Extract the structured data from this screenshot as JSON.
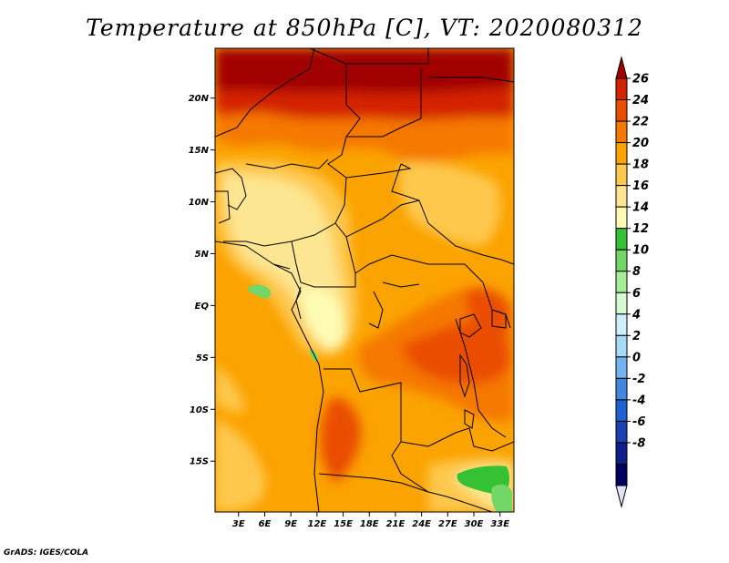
{
  "title": "Temperature at 850hPa [C], VT: 2020080312",
  "footer": "GrADS: IGES/COLA",
  "map": {
    "lat_labels": [
      {
        "label": "20N",
        "lat": 20
      },
      {
        "label": "15N",
        "lat": 15
      },
      {
        "label": "10N",
        "lat": 10
      },
      {
        "label": "5N",
        "lat": 5
      },
      {
        "label": "EQ",
        "lat": 0
      },
      {
        "label": "5S",
        "lat": -5
      },
      {
        "label": "10S",
        "lat": -10
      },
      {
        "label": "15S",
        "lat": -15
      }
    ],
    "lon_labels": [
      {
        "label": "3E",
        "lon": 3
      },
      {
        "label": "6E",
        "lon": 6
      },
      {
        "label": "9E",
        "lon": 9
      },
      {
        "label": "12E",
        "lon": 12
      },
      {
        "label": "15E",
        "lon": 15
      },
      {
        "label": "18E",
        "lon": 18
      },
      {
        "label": "21E",
        "lon": 21
      },
      {
        "label": "24E",
        "lon": 24
      },
      {
        "label": "27E",
        "lon": 27
      },
      {
        "label": "30E",
        "lon": 30
      },
      {
        "label": "33E",
        "lon": 33
      }
    ],
    "lon_range": [
      0.3,
      34.6
    ],
    "lat_range": [
      -19.9,
      24.8
    ]
  },
  "colorbar": {
    "levels": [
      "26",
      "24",
      "22",
      "20",
      "18",
      "16",
      "14",
      "12",
      "10",
      "8",
      "6",
      "4",
      "2",
      "0",
      "-2",
      "-4",
      "-6",
      "-8"
    ],
    "colors": [
      "#a00000",
      "#d32300",
      "#ea4e00",
      "#f57800",
      "#fba300",
      "#fec84d",
      "#fde691",
      "#fefcb4",
      "#36c034",
      "#72d766",
      "#a6ee95",
      "#d6fad2",
      "#cdeffc",
      "#a6dbf8",
      "#75b3f0",
      "#4586e0",
      "#2160cf",
      "#1c3fb2",
      "#0c1f8a",
      "#000060",
      "#e1e1fa"
    ]
  }
}
